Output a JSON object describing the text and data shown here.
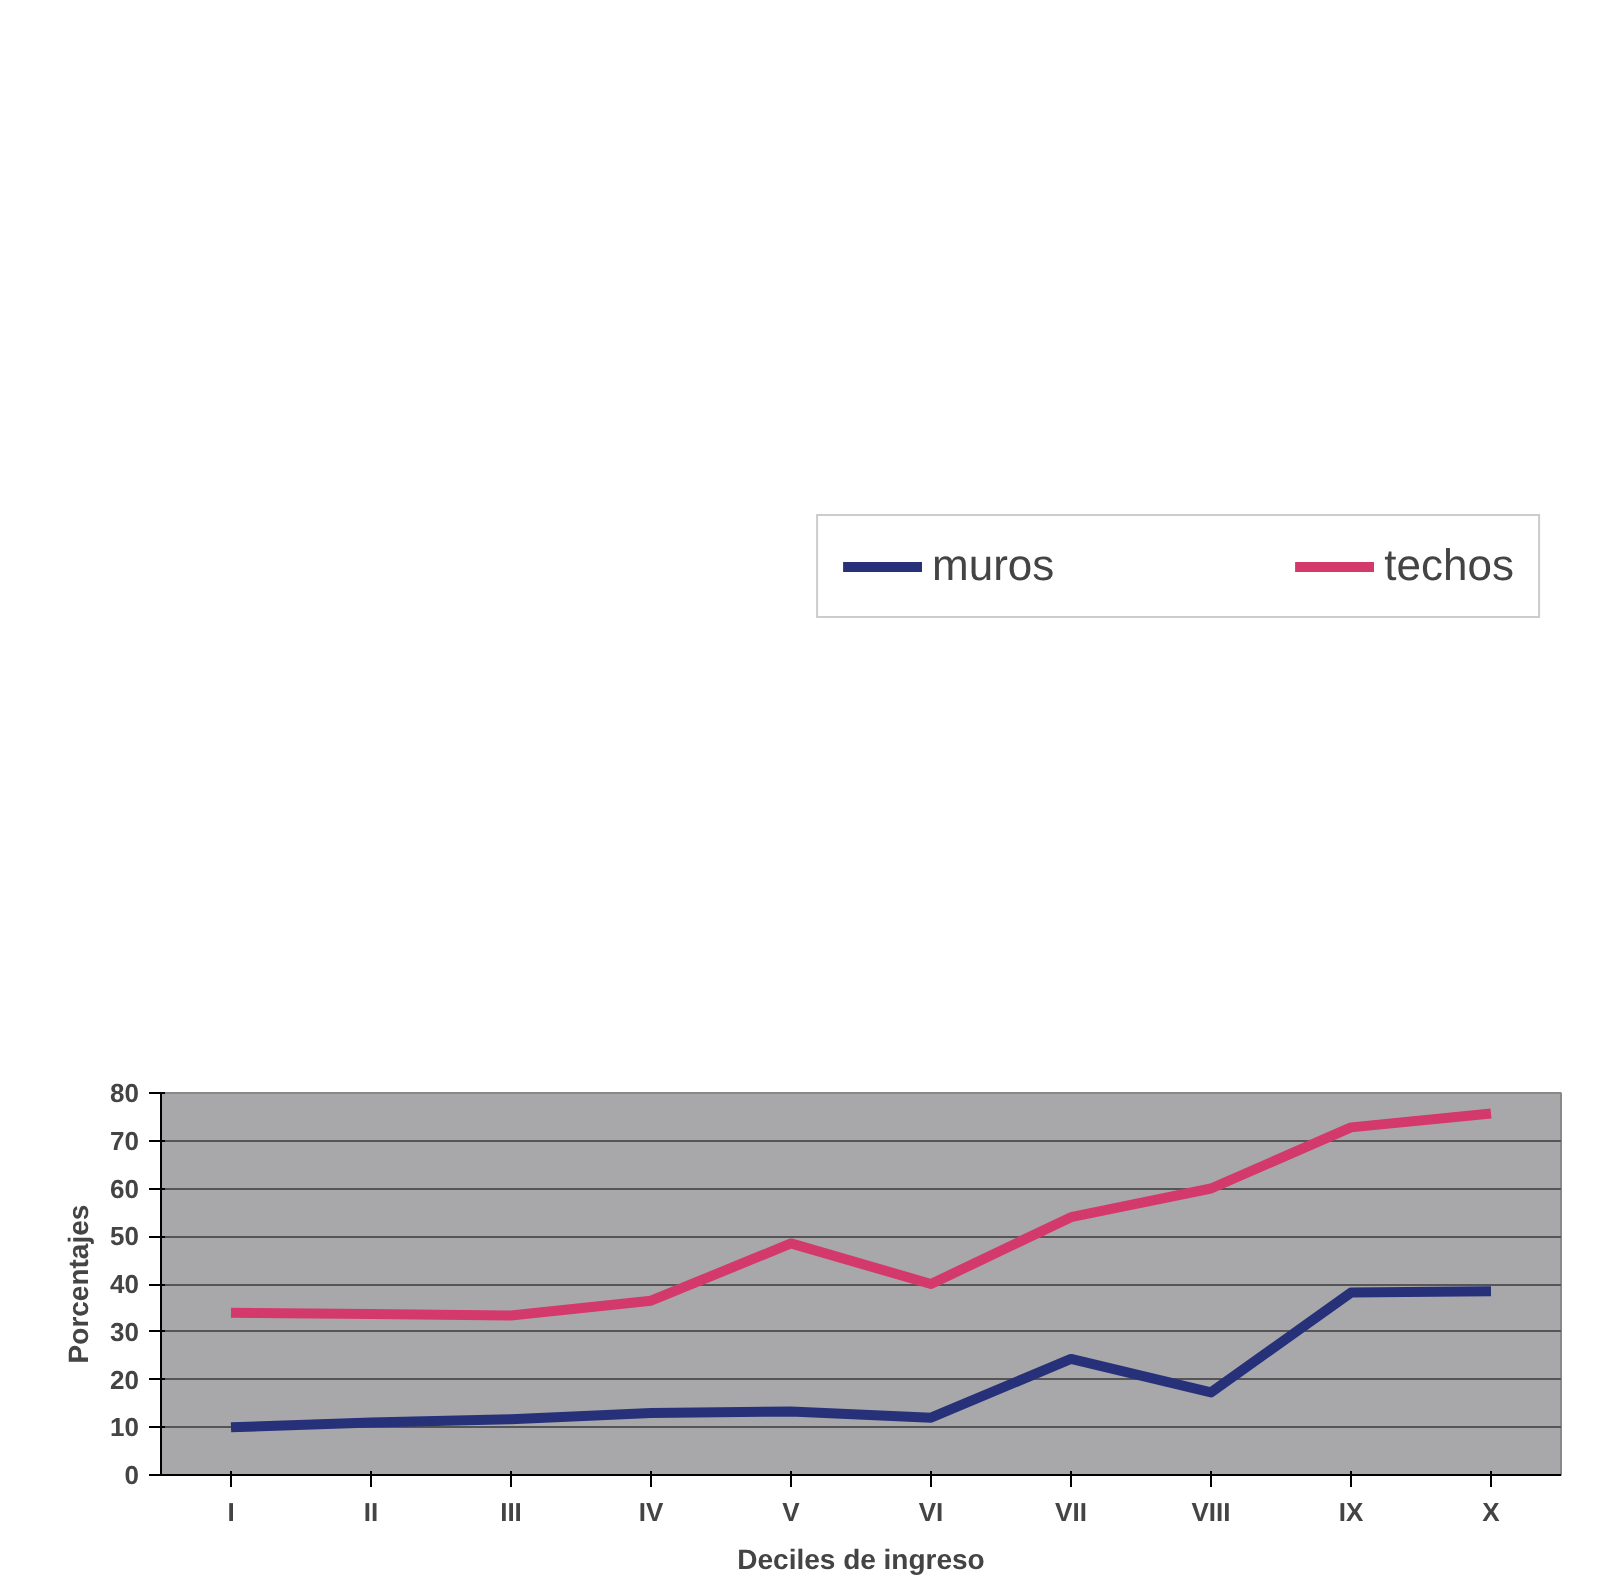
{
  "chart_data": {
    "type": "line",
    "xlabel": "Deciles de ingreso",
    "ylabel": "Porcentajes",
    "categories": [
      "I",
      "II",
      "III",
      "IV",
      "V",
      "VI",
      "VII",
      "VIII",
      "IX",
      "X"
    ],
    "series": [
      {
        "name": "muros",
        "color": "#27317a",
        "values": [
          10,
          11,
          11.7,
          13,
          13.3,
          12,
          24.3,
          17.3,
          38.2,
          38.5
        ]
      },
      {
        "name": "techos",
        "color": "#d33a6b",
        "values": [
          34,
          33.7,
          33.4,
          36.5,
          48.5,
          40,
          54,
          60,
          72.8,
          75.7
        ]
      }
    ],
    "ylim": [
      0,
      80
    ],
    "yticks": [
      0,
      10,
      20,
      30,
      40,
      50,
      60,
      70,
      80
    ],
    "grid": "y",
    "legend": "top",
    "marker": "none",
    "line_style": "solid"
  }
}
